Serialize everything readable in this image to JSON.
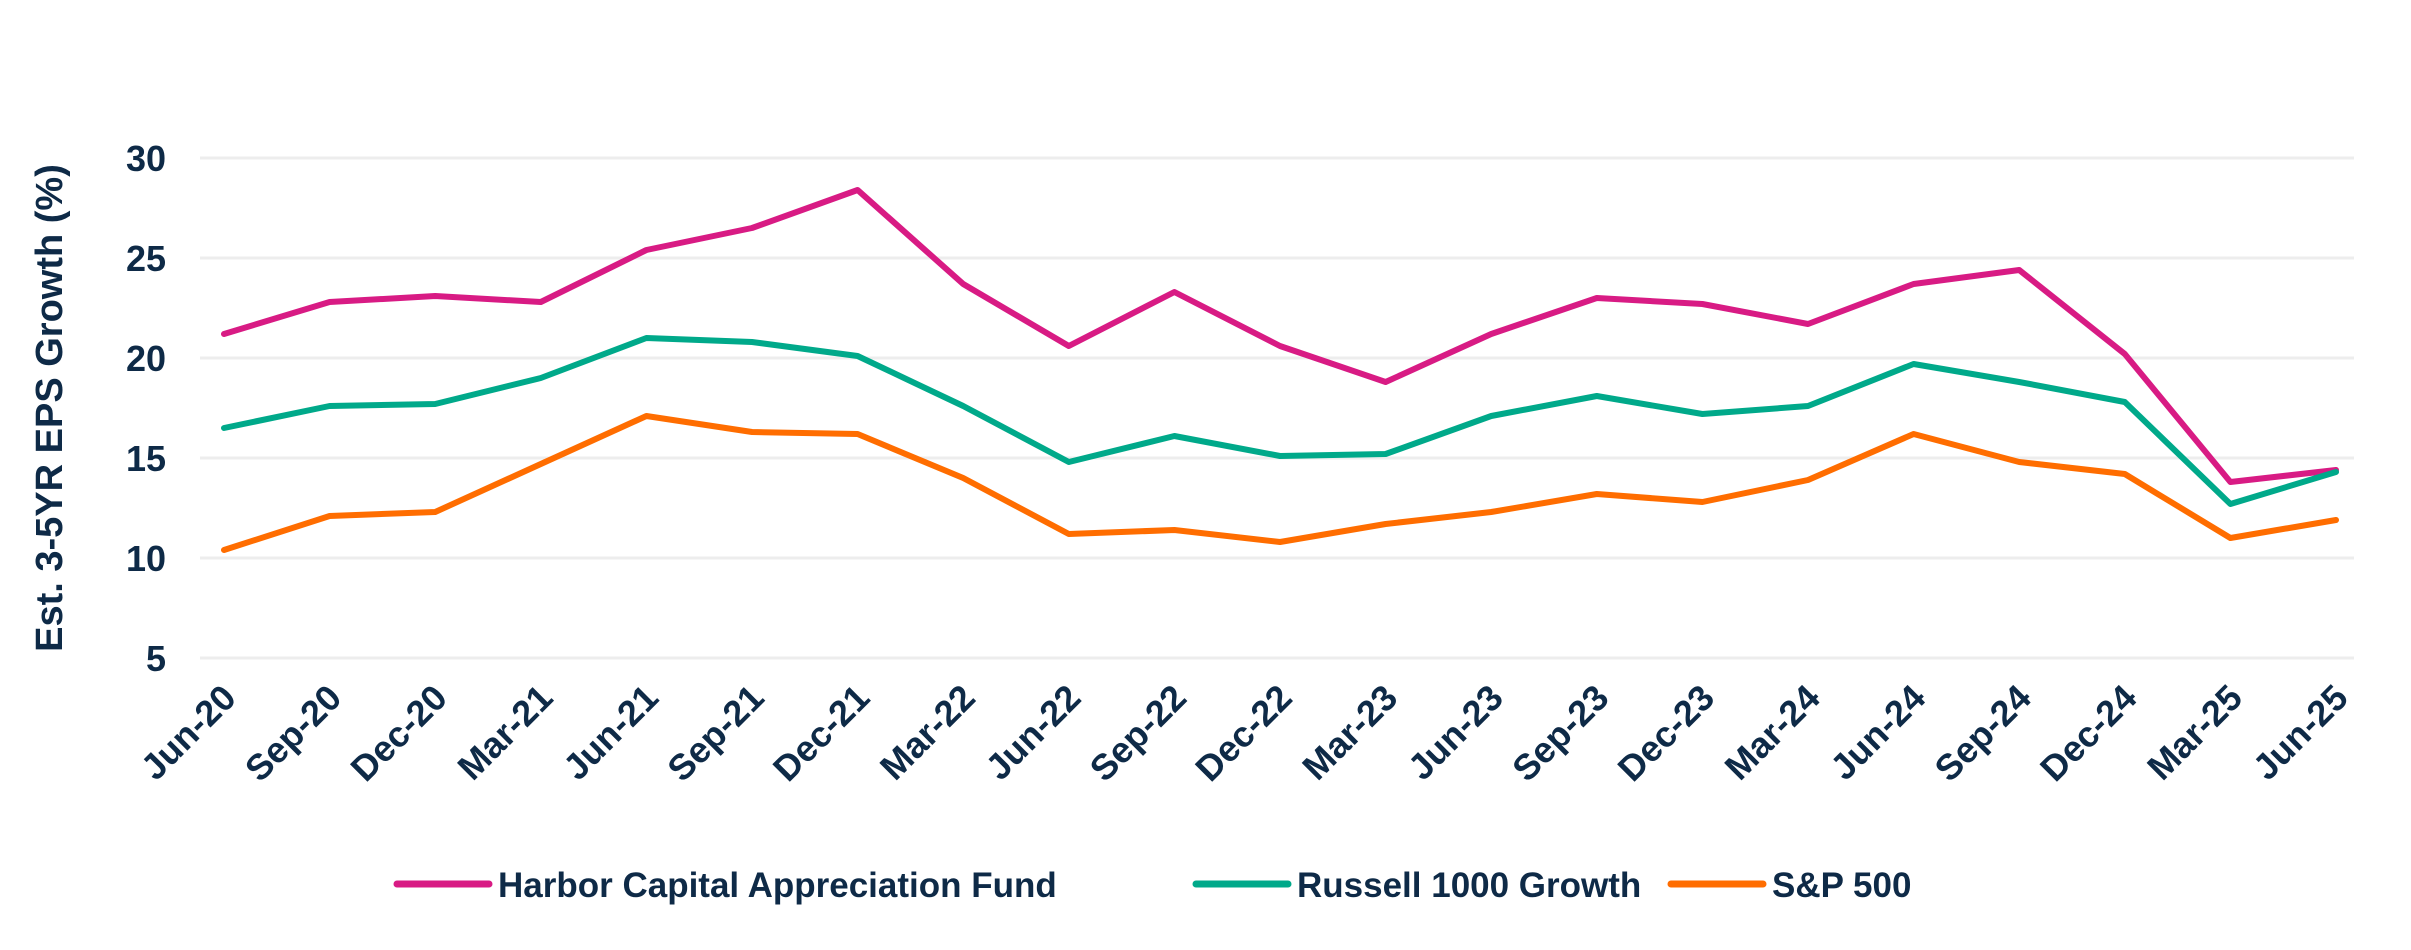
{
  "chart_data": {
    "type": "line",
    "title": "",
    "xlabel": "",
    "ylabel": "Est. 3-5YR EPS Growth (%)",
    "ylim": [
      5,
      30
    ],
    "yticks": [
      5,
      10,
      15,
      20,
      25,
      30
    ],
    "grid": true,
    "legend_position": "bottom",
    "categories": [
      "Jun-20",
      "Sep-20",
      "Dec-20",
      "Mar-21",
      "Jun-21",
      "Sep-21",
      "Dec-21",
      "Mar-22",
      "Jun-22",
      "Sep-22",
      "Dec-22",
      "Mar-23",
      "Jun-23",
      "Sep-23",
      "Dec-23",
      "Mar-24",
      "Jun-24",
      "Sep-24",
      "Dec-24",
      "Mar-25",
      "Jun-25"
    ],
    "series": [
      {
        "name": "Harbor Capital Appreciation Fund",
        "color": "#d81b84",
        "values": [
          21.2,
          22.8,
          23.1,
          22.8,
          25.4,
          26.5,
          28.4,
          23.7,
          20.6,
          23.3,
          20.6,
          18.8,
          21.2,
          23.0,
          22.7,
          21.7,
          23.7,
          24.4,
          20.2,
          13.8,
          14.4
        ]
      },
      {
        "name": "Russell 1000 Growth",
        "color": "#00a98a",
        "values": [
          16.5,
          17.6,
          17.7,
          19.0,
          21.0,
          20.8,
          20.1,
          17.6,
          14.8,
          16.1,
          15.1,
          15.2,
          17.1,
          18.1,
          17.2,
          17.6,
          19.7,
          18.8,
          17.8,
          12.7,
          14.3
        ]
      },
      {
        "name": "S&P 500",
        "color": "#ff6d00",
        "values": [
          10.4,
          12.1,
          12.3,
          14.7,
          17.1,
          16.3,
          16.2,
          14.0,
          11.2,
          11.4,
          10.8,
          11.7,
          12.3,
          13.2,
          12.8,
          13.9,
          16.2,
          14.8,
          14.2,
          11.0,
          11.9
        ]
      }
    ]
  }
}
